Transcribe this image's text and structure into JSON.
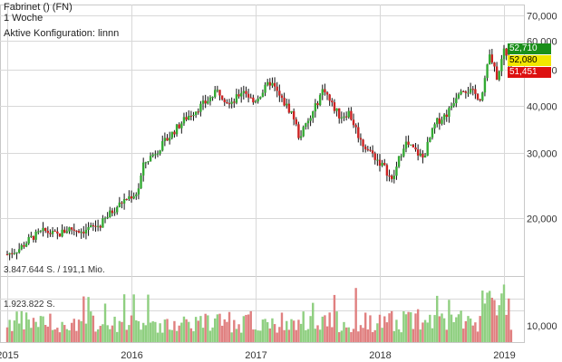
{
  "header": {
    "title": "Fabrinet () (FN)",
    "interval": "1 Woche",
    "config": "Aktive Konfiguration: linnn"
  },
  "volume_labels": {
    "max": "3.847.644 S. / 191,1 Mio.",
    "mid": "1.923.822 S."
  },
  "badges": [
    {
      "text": "52,710",
      "bg": "#1a8f1a",
      "fg": "#ffffff"
    },
    {
      "text": "52,080",
      "bg": "#f2e600",
      "fg": "#000000"
    },
    {
      "text": "51,451",
      "bg": "#dd1111",
      "fg": "#ffffff"
    }
  ],
  "colors": {
    "up": "#33aa33",
    "down": "#cc2222",
    "vol_up": "#8fcf80",
    "vol_down": "#e08080",
    "grid": "#d8d8d8"
  },
  "chart_data": {
    "type": "candlestick",
    "title": "Fabrinet () (FN)",
    "y_scale": "log",
    "ylim": [
      14000,
      75000
    ],
    "yticks": [
      {
        "value": 70000,
        "label": "70,000"
      },
      {
        "value": 60000,
        "label": "60,000"
      },
      {
        "value": 50000,
        "label": "50,000"
      },
      {
        "value": 40000,
        "label": "40,000"
      },
      {
        "value": 30000,
        "label": "30,000"
      },
      {
        "value": 20000,
        "label": "20,000"
      }
    ],
    "volume_ticks": [
      {
        "value": 10000,
        "label": "10,000"
      }
    ],
    "xticks": [
      {
        "label": "2015",
        "t": 0.0
      },
      {
        "label": "2016",
        "t": 1.0
      },
      {
        "label": "2017",
        "t": 2.0
      },
      {
        "label": "2018",
        "t": 3.0
      },
      {
        "label": "2019",
        "t": 4.0
      }
    ],
    "price_path": [
      [
        0.0,
        16.0
      ],
      [
        0.1,
        16.6
      ],
      [
        0.2,
        17.8
      ],
      [
        0.3,
        18.5
      ],
      [
        0.4,
        18.0
      ],
      [
        0.5,
        18.8
      ],
      [
        0.6,
        18.5
      ],
      [
        0.75,
        19.2
      ],
      [
        0.85,
        21.0
      ],
      [
        0.95,
        22.5
      ],
      [
        1.05,
        23.5
      ],
      [
        1.1,
        28.0
      ],
      [
        1.25,
        31.5
      ],
      [
        1.45,
        37.5
      ],
      [
        1.6,
        41.0
      ],
      [
        1.7,
        44.0
      ],
      [
        1.8,
        40.0
      ],
      [
        1.9,
        44.5
      ],
      [
        1.98,
        41.0
      ],
      [
        2.05,
        43.5
      ],
      [
        2.12,
        46.5
      ],
      [
        2.2,
        42.0
      ],
      [
        2.3,
        38.0
      ],
      [
        2.35,
        33.0
      ],
      [
        2.45,
        37.5
      ],
      [
        2.55,
        45.0
      ],
      [
        2.6,
        41.0
      ],
      [
        2.68,
        37.5
      ],
      [
        2.75,
        38.5
      ],
      [
        2.85,
        32.0
      ],
      [
        2.95,
        29.5
      ],
      [
        3.05,
        27.0
      ],
      [
        3.1,
        25.0
      ],
      [
        3.2,
        32.0
      ],
      [
        3.3,
        30.0
      ],
      [
        3.35,
        29.0
      ],
      [
        3.45,
        36.0
      ],
      [
        3.55,
        38.5
      ],
      [
        3.65,
        45.0
      ],
      [
        3.72,
        44.0
      ],
      [
        3.82,
        42.0
      ],
      [
        3.88,
        55.0
      ],
      [
        3.95,
        47.0
      ],
      [
        4.0,
        57.0
      ],
      [
        4.05,
        52.7
      ]
    ],
    "last": {
      "high": 52.71,
      "close": 52.08,
      "low": 51.451
    }
  }
}
